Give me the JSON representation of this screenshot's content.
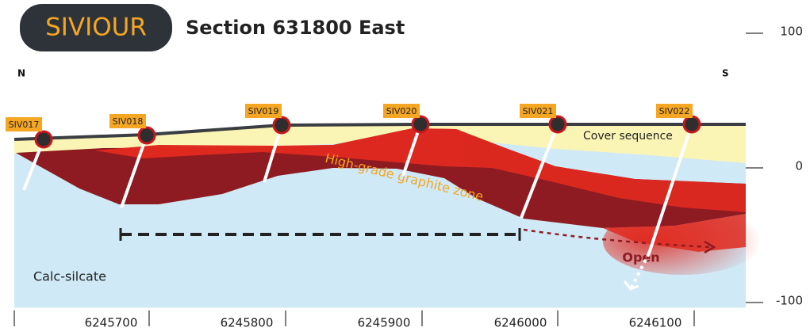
{
  "header": {
    "logo": "SIVIOUR",
    "title": "Section 631800 East"
  },
  "compass": {
    "north": "N",
    "south": "S"
  },
  "drill_holes": [
    "SIV017",
    "SIV018",
    "SIV019",
    "SIV020",
    "SIV021",
    "SIV022"
  ],
  "units": {
    "cover": "Cover sequence",
    "graphite": "High-grade graphite zone",
    "host": "Calc-silcate"
  },
  "annotation": "Open",
  "elevation_labels": [
    100,
    0,
    -100
  ],
  "northing_labels": [
    6245700,
    6245800,
    6245900,
    6246000,
    6246100
  ]
}
